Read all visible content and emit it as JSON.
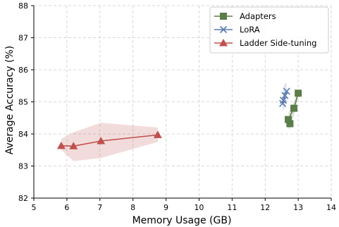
{
  "chart_data": {
    "type": "line",
    "title": "",
    "xlabel": "Memory Usage (GB)",
    "ylabel": "Average Accuracy (%)",
    "xlim": [
      5,
      14
    ],
    "ylim": [
      82,
      88
    ],
    "xticks": [
      "5",
      "6",
      "7",
      "8",
      "9",
      "10",
      "11",
      "12",
      "13",
      "14"
    ],
    "yticks": [
      "82",
      "83",
      "84",
      "85",
      "86",
      "87",
      "88"
    ],
    "grid": true,
    "legend_position": "top-right",
    "series": [
      {
        "name": "Adapters",
        "marker": "square",
        "color": "#5a7d49",
        "band_color": "#5a7d49",
        "x": [
          12.75,
          12.7,
          12.87,
          13.0
        ],
        "y": [
          84.32,
          84.45,
          84.8,
          85.27
        ],
        "band_upper": [
          84.55,
          84.65,
          85.0,
          85.35
        ],
        "band_lower": [
          84.12,
          84.2,
          84.55,
          85.15
        ]
      },
      {
        "name": "LoRA",
        "marker": "x",
        "color": "#5b7bb0",
        "band_color": "#5b7bb0",
        "x": [
          12.53,
          12.55,
          12.6,
          12.65
        ],
        "y": [
          84.95,
          85.05,
          85.2,
          85.33
        ],
        "band_upper": [
          85.25,
          85.4,
          85.6,
          85.55
        ],
        "band_lower": [
          84.7,
          84.75,
          84.85,
          85.05
        ]
      },
      {
        "name": "Ladder Side-tuning",
        "marker": "triangle",
        "color": "#c0504d",
        "band_color": "#c0504d",
        "x": [
          5.83,
          6.2,
          7.03,
          8.75
        ],
        "y": [
          83.63,
          83.62,
          83.78,
          83.97
        ],
        "band_upper": [
          83.85,
          84.05,
          84.35,
          84.2
        ],
        "band_lower": [
          83.5,
          83.15,
          83.25,
          83.75
        ]
      }
    ]
  }
}
